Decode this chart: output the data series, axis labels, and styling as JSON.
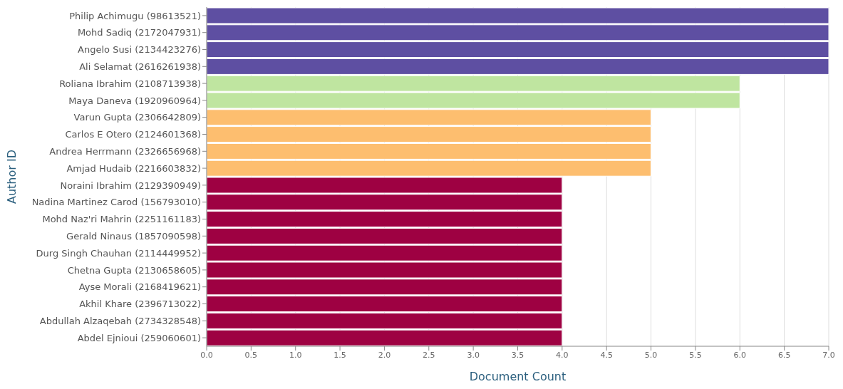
{
  "chart_data": {
    "type": "bar",
    "orientation": "horizontal",
    "xlabel": "Document Count",
    "ylabel": "Author ID",
    "categories": [
      "Philip Achimugu (98613521)",
      "Mohd Sadiq (2172047931)",
      "Angelo Susi (2134423276)",
      "Ali Selamat (2616261938)",
      "Roliana Ibrahim (2108713938)",
      "Maya Daneva (1920960964)",
      "Varun Gupta (2306642809)",
      "Carlos E Otero (2124601368)",
      "Andrea Herrmann (2326656968)",
      "Amjad Hudaib (2216603832)",
      "Noraini Ibrahim (2129390949)",
      "Nadina Martinez Carod (156793010)",
      "Mohd Naz'ri Mahrin (2251161183)",
      "Gerald Ninaus (1857090598)",
      "Durg Singh Chauhan (2114449952)",
      "Chetna Gupta (2130658605)",
      "Ayse Morali (2168419621)",
      "Akhil Khare (2396713022)",
      "Abdullah Alzaqebah (2734328548)",
      "Abdel Ejnioui (259060601)"
    ],
    "values": [
      7,
      7,
      7,
      7,
      6,
      6,
      5,
      5,
      5,
      5,
      4,
      4,
      4,
      4,
      4,
      4,
      4,
      4,
      4,
      4
    ],
    "colors": [
      "#5e4fa2",
      "#5e4fa2",
      "#5e4fa2",
      "#5e4fa2",
      "#bfe5a0",
      "#bfe5a0",
      "#fdbe6f",
      "#fdbe6f",
      "#fdbe6f",
      "#fdbe6f",
      "#9e0142",
      "#9e0142",
      "#9e0142",
      "#9e0142",
      "#9e0142",
      "#9e0142",
      "#9e0142",
      "#9e0142",
      "#9e0142",
      "#9e0142"
    ],
    "xlim": [
      0,
      7
    ],
    "xticks": [
      {
        "value": 0,
        "label": "0.0"
      },
      {
        "value": 0.5,
        "label": "0.5"
      },
      {
        "value": 1,
        "label": "1.0"
      },
      {
        "value": 1.5,
        "label": "1.5"
      },
      {
        "value": 2,
        "label": "2.0"
      },
      {
        "value": 2.5,
        "label": "2.5"
      },
      {
        "value": 3,
        "label": "3.0"
      },
      {
        "value": 3.5,
        "label": "3.5"
      },
      {
        "value": 4,
        "label": "4.0"
      },
      {
        "value": 4.5,
        "label": "4.5"
      },
      {
        "value": 5,
        "label": "5.0"
      },
      {
        "value": 5.5,
        "label": "5.5"
      },
      {
        "value": 6,
        "label": "6.0"
      },
      {
        "value": 6.5,
        "label": "6.5"
      },
      {
        "value": 7,
        "label": "7.0"
      }
    ],
    "grid": "x"
  }
}
